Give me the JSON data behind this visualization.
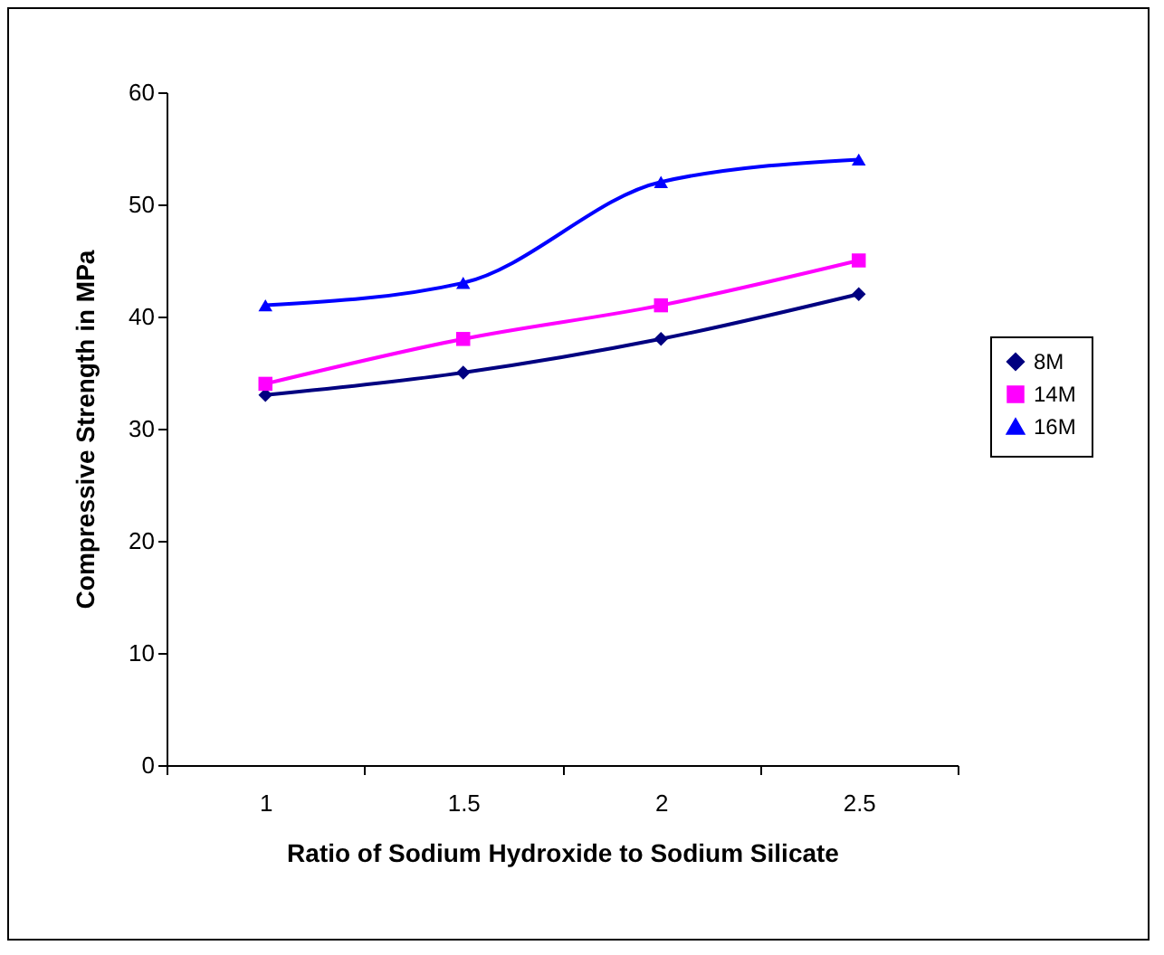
{
  "chart_data": {
    "type": "line",
    "xlabel": "Ratio of Sodium Hydroxide to Sodium Silicate",
    "ylabel": "Compressive Strength in MPa",
    "categories": [
      "1",
      "1.5",
      "2",
      "2.5"
    ],
    "series": [
      {
        "name": "8M",
        "color": "#000080",
        "marker": "diamond",
        "values": [
          33,
          35,
          38,
          42
        ]
      },
      {
        "name": "14M",
        "color": "#ff00ff",
        "marker": "square",
        "values": [
          34,
          38,
          41,
          45
        ]
      },
      {
        "name": "16M",
        "color": "#0000ff",
        "marker": "triangle",
        "values": [
          41,
          43,
          52,
          54
        ]
      }
    ],
    "ylim": [
      0,
      60
    ],
    "yticks": [
      0,
      10,
      20,
      30,
      40,
      50,
      60
    ],
    "grid": false,
    "legend": "right"
  }
}
